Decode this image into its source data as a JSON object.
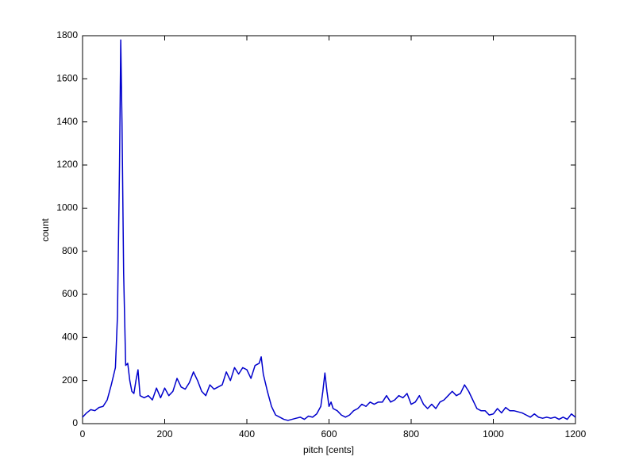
{
  "chart_data": {
    "type": "line",
    "xlabel": "pitch [cents]",
    "ylabel": "count",
    "x": [
      0,
      10,
      20,
      30,
      40,
      50,
      60,
      70,
      80,
      85,
      90,
      93,
      96,
      100,
      105,
      110,
      115,
      120,
      125,
      130,
      135,
      140,
      150,
      160,
      170,
      180,
      190,
      200,
      210,
      220,
      230,
      240,
      250,
      260,
      270,
      280,
      290,
      300,
      310,
      320,
      330,
      340,
      350,
      360,
      370,
      380,
      390,
      400,
      410,
      420,
      430,
      435,
      440,
      450,
      460,
      470,
      480,
      490,
      500,
      510,
      520,
      530,
      540,
      550,
      560,
      570,
      580,
      585,
      590,
      595,
      600,
      605,
      610,
      620,
      630,
      640,
      650,
      660,
      670,
      680,
      690,
      700,
      710,
      720,
      730,
      740,
      750,
      760,
      770,
      780,
      790,
      800,
      810,
      820,
      830,
      840,
      850,
      860,
      870,
      880,
      890,
      900,
      910,
      920,
      930,
      940,
      950,
      960,
      970,
      980,
      990,
      1000,
      1010,
      1020,
      1030,
      1040,
      1050,
      1060,
      1070,
      1080,
      1090,
      1100,
      1110,
      1120,
      1130,
      1140,
      1150,
      1160,
      1170,
      1180,
      1190,
      1200
    ],
    "series": [
      {
        "color": "#0000cc",
        "values": [
          30,
          50,
          65,
          60,
          75,
          80,
          110,
          180,
          260,
          500,
          1200,
          1780,
          1400,
          700,
          270,
          280,
          200,
          150,
          140,
          200,
          250,
          130,
          120,
          130,
          110,
          165,
          120,
          165,
          130,
          150,
          210,
          170,
          160,
          190,
          240,
          200,
          150,
          130,
          180,
          160,
          170,
          180,
          240,
          200,
          260,
          230,
          260,
          250,
          210,
          270,
          280,
          310,
          230,
          150,
          80,
          40,
          30,
          20,
          15,
          20,
          25,
          30,
          20,
          35,
          30,
          45,
          80,
          150,
          235,
          150,
          80,
          100,
          70,
          60,
          40,
          30,
          40,
          60,
          70,
          90,
          80,
          100,
          90,
          100,
          100,
          130,
          100,
          110,
          130,
          120,
          140,
          90,
          100,
          130,
          90,
          70,
          90,
          70,
          100,
          110,
          130,
          150,
          130,
          140,
          180,
          150,
          110,
          70,
          60,
          60,
          40,
          45,
          70,
          50,
          75,
          60,
          60,
          55,
          50,
          40,
          30,
          45,
          30,
          25,
          30,
          25,
          30,
          20,
          30,
          20,
          45,
          30
        ]
      }
    ],
    "xlim": [
      0,
      1200
    ],
    "xticks": [
      0,
      200,
      400,
      600,
      800,
      1000,
      1200
    ],
    "ylim": [
      0,
      1800
    ],
    "yticks": [
      0,
      200,
      400,
      600,
      800,
      1000,
      1200,
      1400,
      1600,
      1800
    ]
  }
}
